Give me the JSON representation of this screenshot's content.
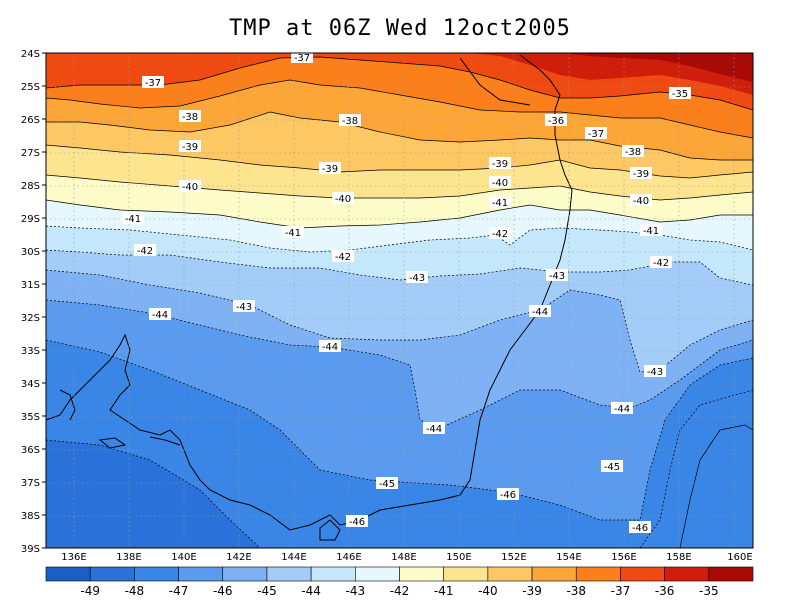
{
  "title": "TMP at 06Z Wed 12oct2005",
  "map": {
    "lat_labels": [
      "24S",
      "25S",
      "26S",
      "27S",
      "28S",
      "29S",
      "30S",
      "31S",
      "32S",
      "33S",
      "34S",
      "35S",
      "36S",
      "37S",
      "38S",
      "39S"
    ],
    "lon_labels": [
      "136E",
      "138E",
      "140E",
      "142E",
      "144E",
      "146E",
      "148E",
      "150E",
      "152E",
      "154E",
      "156E",
      "158E",
      "160E"
    ],
    "contour_labels": [
      "-37",
      "-37",
      "-35",
      "-38",
      "-38",
      "-36",
      "-37",
      "-38",
      "-39",
      "-39",
      "-39",
      "-39",
      "-40",
      "-40",
      "-40",
      "-40",
      "-41",
      "-41",
      "-41",
      "-41",
      "-42",
      "-42",
      "-42",
      "-42",
      "-43",
      "-43",
      "-43",
      "-44",
      "-44",
      "-44",
      "-43",
      "-44",
      "-44",
      "-45",
      "-45",
      "-46",
      "-46",
      "-46"
    ]
  },
  "colorbar": {
    "ticks": [
      "-49",
      "-48",
      "-47",
      "-46",
      "-45",
      "-44",
      "-43",
      "-42",
      "-41",
      "-40",
      "-39",
      "-38",
      "-37",
      "-36",
      "-35"
    ],
    "colors": [
      "#1a5fc8",
      "#2a72da",
      "#3a86e6",
      "#5a9bef",
      "#7eb2f4",
      "#a3cdf8",
      "#c5e7fb",
      "#e6f8fd",
      "#fdfbc8",
      "#fde58f",
      "#fdc763",
      "#fca638",
      "#fb7f1a",
      "#ef4a11",
      "#d01e0c",
      "#a80a05"
    ]
  }
}
